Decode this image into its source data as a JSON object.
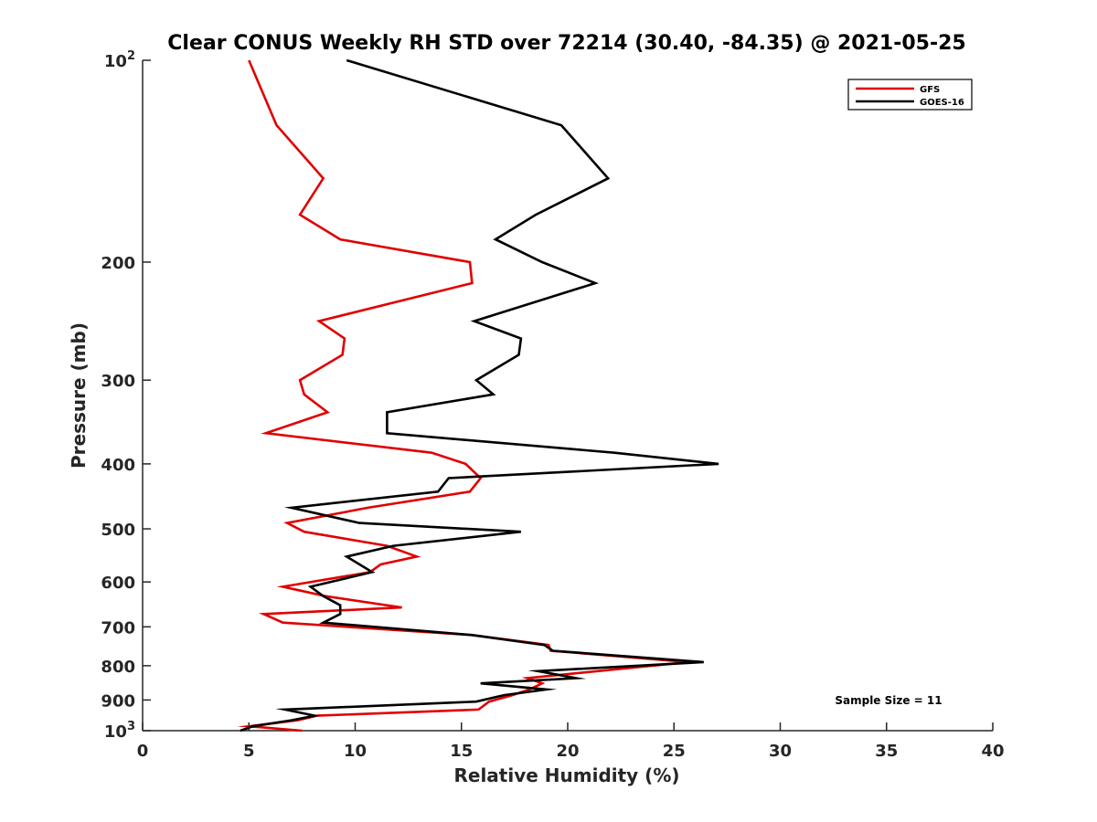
{
  "chart_data": {
    "type": "line",
    "title": "Clear CONUS Weekly RH STD over 72214 (30.40, -84.35) @ 2021-05-25",
    "xlabel": "Relative Humidity (%)",
    "ylabel": "Pressure (mb)",
    "xlim": [
      0,
      40
    ],
    "ylim": [
      100,
      1000
    ],
    "yscale": "log",
    "yreversed": true,
    "x_ticks": [
      0,
      5,
      10,
      15,
      20,
      25,
      30,
      35,
      40
    ],
    "x_tick_labels": [
      "0",
      "5",
      "10",
      "15",
      "20",
      "25",
      "30",
      "35",
      "40"
    ],
    "y_ticks": [
      100,
      200,
      300,
      400,
      500,
      600,
      700,
      800,
      900,
      1000
    ],
    "y_tick_labels": [
      {
        "base": "10",
        "sup": "2"
      },
      {
        "base": "200",
        "sup": ""
      },
      {
        "base": "300",
        "sup": ""
      },
      {
        "base": "400",
        "sup": ""
      },
      {
        "base": "500",
        "sup": ""
      },
      {
        "base": "600",
        "sup": ""
      },
      {
        "base": "700",
        "sup": ""
      },
      {
        "base": "800",
        "sup": ""
      },
      {
        "base": "900",
        "sup": ""
      },
      {
        "base": "10",
        "sup": "3"
      }
    ],
    "legend_position": "top-right",
    "annotation": "Sample Size = 11",
    "series": [
      {
        "name": "GFS",
        "color": "#e00000",
        "points": [
          [
            5.0,
            100
          ],
          [
            6.3,
            125
          ],
          [
            8.5,
            150
          ],
          [
            7.4,
            170
          ],
          [
            9.3,
            185
          ],
          [
            15.4,
            200
          ],
          [
            15.5,
            215
          ],
          [
            8.3,
            245
          ],
          [
            9.5,
            260
          ],
          [
            9.4,
            275
          ],
          [
            7.4,
            300
          ],
          [
            7.6,
            315
          ],
          [
            8.7,
            335
          ],
          [
            5.8,
            360
          ],
          [
            13.6,
            385
          ],
          [
            15.2,
            400
          ],
          [
            15.9,
            420
          ],
          [
            15.4,
            440
          ],
          [
            10.6,
            465
          ],
          [
            6.8,
            490
          ],
          [
            7.6,
            505
          ],
          [
            11.5,
            530
          ],
          [
            12.9,
            550
          ],
          [
            11.2,
            565
          ],
          [
            10.7,
            580
          ],
          [
            6.6,
            610
          ],
          [
            8.6,
            630
          ],
          [
            12.2,
            655
          ],
          [
            5.7,
            670
          ],
          [
            6.6,
            690
          ],
          [
            15.5,
            720
          ],
          [
            19.1,
            745
          ],
          [
            19.2,
            760
          ],
          [
            25.7,
            790
          ],
          [
            21.4,
            815
          ],
          [
            18.1,
            835
          ],
          [
            18.8,
            850
          ],
          [
            18.2,
            868
          ],
          [
            17.4,
            885
          ],
          [
            16.3,
            905
          ],
          [
            15.8,
            930
          ],
          [
            8.2,
            950
          ],
          [
            7.3,
            965
          ],
          [
            5.0,
            985
          ],
          [
            7.5,
            1000
          ]
        ]
      },
      {
        "name": "GOES-16",
        "color": "#000000",
        "points": [
          [
            9.6,
            100
          ],
          [
            19.7,
            125
          ],
          [
            21.9,
            150
          ],
          [
            18.5,
            170
          ],
          [
            16.6,
            185
          ],
          [
            18.8,
            200
          ],
          [
            21.3,
            215
          ],
          [
            15.6,
            245
          ],
          [
            17.8,
            260
          ],
          [
            17.7,
            275
          ],
          [
            15.7,
            300
          ],
          [
            16.5,
            315
          ],
          [
            11.5,
            335
          ],
          [
            11.5,
            360
          ],
          [
            22.2,
            385
          ],
          [
            27.1,
            400
          ],
          [
            14.4,
            420
          ],
          [
            13.9,
            440
          ],
          [
            7.0,
            465
          ],
          [
            10.2,
            490
          ],
          [
            17.8,
            505
          ],
          [
            11.8,
            530
          ],
          [
            9.6,
            550
          ],
          [
            10.8,
            580
          ],
          [
            7.9,
            610
          ],
          [
            8.5,
            630
          ],
          [
            9.3,
            650
          ],
          [
            9.3,
            670
          ],
          [
            8.5,
            690
          ],
          [
            15.5,
            720
          ],
          [
            18.9,
            745
          ],
          [
            19.3,
            760
          ],
          [
            26.4,
            790
          ],
          [
            18.6,
            815
          ],
          [
            20.4,
            835
          ],
          [
            15.9,
            850
          ],
          [
            19.0,
            868
          ],
          [
            17.0,
            885
          ],
          [
            15.7,
            905
          ],
          [
            6.7,
            930
          ],
          [
            8.1,
            950
          ],
          [
            7.0,
            965
          ],
          [
            5.2,
            985
          ],
          [
            4.6,
            1000
          ]
        ]
      }
    ]
  }
}
